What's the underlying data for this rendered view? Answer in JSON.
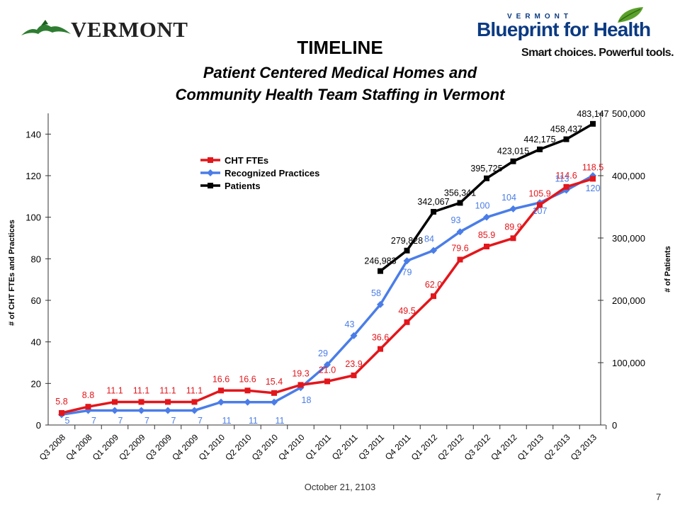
{
  "header": {
    "vermont_logo_text": "VERMONT",
    "blueprint_small": "VERMONT",
    "blueprint_big": "Blueprint for Health",
    "blueprint_tagline": "Smart choices. Powerful tools."
  },
  "footer": {
    "date": "October 21, 2103",
    "page": "7"
  },
  "chart_data": {
    "type": "line",
    "title": "TIMELINE",
    "subtitle": [
      "Patient Centered Medical Homes and",
      "Community Health Team Staffing in Vermont"
    ],
    "categories": [
      "Q3 2008",
      "Q4 2008",
      "Q1 2009",
      "Q2 2009",
      "Q3 2009",
      "Q4 2009",
      "Q1 2010",
      "Q2 2010",
      "Q3 2010",
      "Q4 2010",
      "Q1 2011",
      "Q2 2011",
      "Q3 2011",
      "Q4 2011",
      "Q1 2012",
      "Q2 2012",
      "Q3 2012",
      "Q4 2012",
      "Q1 2013",
      "Q2 2013",
      "Q3 2013"
    ],
    "ylabel": "# of CHT FTEs and Practices",
    "y2label": "# of Patients",
    "ylim": [
      0,
      150
    ],
    "yticks": [
      0,
      20,
      40,
      60,
      80,
      100,
      120,
      140
    ],
    "y2lim": [
      0,
      500000
    ],
    "y2ticks": [
      0,
      100000,
      200000,
      300000,
      400000,
      500000
    ],
    "y2tick_labels": [
      "0",
      "100,000",
      "200,000",
      "300,000",
      "400,000",
      "500,000"
    ],
    "legend": {
      "placement": "upper-left-inside"
    },
    "series": [
      {
        "name": "CHT FTEs",
        "axis": "left",
        "color": "#e3161b",
        "marker": "square",
        "points": [
          {
            "x": "Q3 2008",
            "y": 5.8,
            "label": "5.8"
          },
          {
            "x": "Q4 2008",
            "y": 8.8,
            "label": "8.8"
          },
          {
            "x": "Q1 2009",
            "y": 11.1,
            "label": "11.1"
          },
          {
            "x": "Q2 2009",
            "y": 11.1,
            "label": "11.1"
          },
          {
            "x": "Q3 2009",
            "y": 11.1,
            "label": "11.1"
          },
          {
            "x": "Q4 2009",
            "y": 11.1,
            "label": "11.1"
          },
          {
            "x": "Q1 2010",
            "y": 16.6,
            "label": "16.6"
          },
          {
            "x": "Q2 2010",
            "y": 16.6,
            "label": "16.6"
          },
          {
            "x": "Q3 2010",
            "y": 15.4,
            "label": "15.4"
          },
          {
            "x": "Q4 2010",
            "y": 19.3,
            "label": "19.3"
          },
          {
            "x": "Q1 2011",
            "y": 21.0,
            "label": "21.0"
          },
          {
            "x": "Q2 2011",
            "y": 23.9,
            "label": "23.9"
          },
          {
            "x": "Q3 2011",
            "y": 36.6,
            "label": "36.6"
          },
          {
            "x": "Q4 2011",
            "y": 49.5,
            "label": "49.5"
          },
          {
            "x": "Q1 2012",
            "y": 62.0,
            "label": "62.0"
          },
          {
            "x": "Q2 2012",
            "y": 79.6,
            "label": "79.6"
          },
          {
            "x": "Q3 2012",
            "y": 85.9,
            "label": "85.9"
          },
          {
            "x": "Q4 2012",
            "y": 89.9,
            "label": "89.9"
          },
          {
            "x": "Q1 2013",
            "y": 105.9,
            "label": "105.9"
          },
          {
            "x": "Q2 2013",
            "y": 114.6,
            "label": "114.6"
          },
          {
            "x": "Q3 2013",
            "y": 118.5,
            "label": "118.5"
          }
        ]
      },
      {
        "name": "Recognized Practices",
        "axis": "left",
        "color": "#4a7de8",
        "marker": "diamond",
        "points": [
          {
            "x": "Q3 2008",
            "y": 5,
            "label": "5"
          },
          {
            "x": "Q4 2008",
            "y": 7,
            "label": "7"
          },
          {
            "x": "Q1 2009",
            "y": 7,
            "label": "7"
          },
          {
            "x": "Q2 2009",
            "y": 7,
            "label": "7"
          },
          {
            "x": "Q3 2009",
            "y": 7,
            "label": "7"
          },
          {
            "x": "Q4 2009",
            "y": 7,
            "label": "7"
          },
          {
            "x": "Q1 2010",
            "y": 11,
            "label": "11"
          },
          {
            "x": "Q2 2010",
            "y": 11,
            "label": "11"
          },
          {
            "x": "Q3 2010",
            "y": 11,
            "label": "11"
          },
          {
            "x": "Q4 2010",
            "y": 18,
            "label": "18"
          },
          {
            "x": "Q1 2011",
            "y": 29,
            "label": "29"
          },
          {
            "x": "Q2 2011",
            "y": 43,
            "label": "43"
          },
          {
            "x": "Q3 2011",
            "y": 58,
            "label": "58"
          },
          {
            "x": "Q4 2011",
            "y": 79,
            "label": "79"
          },
          {
            "x": "Q1 2012",
            "y": 84,
            "label": "84"
          },
          {
            "x": "Q2 2012",
            "y": 93,
            "label": "93"
          },
          {
            "x": "Q3 2012",
            "y": 100,
            "label": "100"
          },
          {
            "x": "Q4 2012",
            "y": 104,
            "label": "104"
          },
          {
            "x": "Q1 2013",
            "y": 107,
            "label": "107"
          },
          {
            "x": "Q2 2013",
            "y": 113,
            "label": "113"
          },
          {
            "x": "Q3 2013",
            "y": 120,
            "label": "120"
          }
        ]
      },
      {
        "name": "Patients",
        "axis": "right",
        "color": "#000000",
        "marker": "square",
        "points": [
          {
            "x": "Q3 2011",
            "y": 246983,
            "label": "246,983"
          },
          {
            "x": "Q4 2011",
            "y": 279828,
            "label": "279,828"
          },
          {
            "x": "Q1 2012",
            "y": 342067,
            "label": "342,067"
          },
          {
            "x": "Q2 2012",
            "y": 356341,
            "label": "356,341"
          },
          {
            "x": "Q3 2012",
            "y": 395725,
            "label": "395,725"
          },
          {
            "x": "Q4 2012",
            "y": 423015,
            "label": "423,015"
          },
          {
            "x": "Q1 2013",
            "y": 442175,
            "label": "442,175"
          },
          {
            "x": "Q2 2013",
            "y": 458437,
            "label": "458,437"
          },
          {
            "x": "Q3 2013",
            "y": 483147,
            "label": "483,147"
          }
        ]
      }
    ]
  }
}
